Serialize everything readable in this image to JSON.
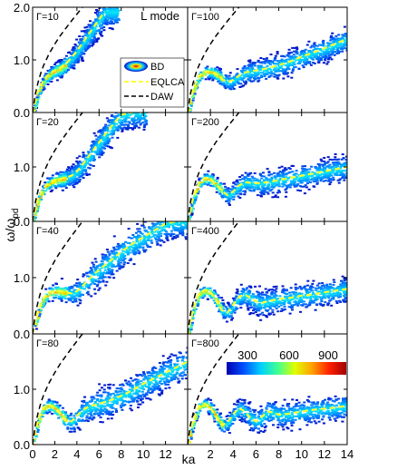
{
  "chart_data": {
    "type": "heatmap",
    "mode_label": "L mode",
    "xlabel": "ka",
    "ylabel": "ω/ω",
    "ylabel_sub": "pd",
    "grid": false,
    "legend": {
      "placement": "top-left panel, right side",
      "entries": [
        {
          "label": "BD",
          "style": "heatmap-icon"
        },
        {
          "label": "EQLCA",
          "style": "dashed",
          "color": "#ffff33"
        },
        {
          "label": "DAW",
          "style": "dashed",
          "color": "#000000"
        }
      ]
    },
    "colorbar": {
      "ticks": [
        "300",
        "600",
        "900"
      ],
      "range": [
        200,
        1050
      ],
      "placement": "bottom-right panel, top",
      "colors": [
        "#0000b0",
        "#0050ff",
        "#00d0ff",
        "#40ff90",
        "#e0ff00",
        "#ffa000",
        "#ff2000",
        "#a00000"
      ]
    },
    "left_xaxis": {
      "range": [
        0,
        14
      ],
      "ticks": [
        "0",
        "2",
        "4",
        "6",
        "8",
        "10",
        "12"
      ]
    },
    "right_xaxis": {
      "range": [
        0,
        14
      ],
      "ticks": [
        "2",
        "4",
        "6",
        "8",
        "10",
        "12",
        "14"
      ]
    },
    "yaxis": {
      "range": [
        0,
        2
      ],
      "tick_values": [
        0,
        1,
        2
      ],
      "top_row_ticks": [
        "0.0",
        "1.0",
        "2.0"
      ],
      "other_row_ticks": [
        "0.0",
        "1.0"
      ]
    },
    "panels": [
      {
        "label": "Γ=10",
        "column": "left",
        "row": 0,
        "eqlca": {
          "x": [
            0,
            0.5,
            1,
            1.5,
            2,
            2.5,
            3,
            3.5,
            4,
            4.5,
            5,
            5.5,
            6,
            6.5
          ],
          "y": [
            0,
            0.4,
            0.62,
            0.74,
            0.8,
            0.85,
            0.93,
            1.04,
            1.17,
            1.32,
            1.47,
            1.62,
            1.77,
            1.92
          ]
        }
      },
      {
        "label": "Γ=100",
        "column": "right",
        "row": 0,
        "eqlca": {
          "x": [
            0,
            0.5,
            1,
            1.5,
            2,
            2.5,
            3,
            3.5,
            4,
            4.5,
            5,
            6,
            7,
            8,
            9,
            10,
            11,
            12,
            13,
            14
          ],
          "y": [
            0,
            0.45,
            0.7,
            0.78,
            0.78,
            0.73,
            0.64,
            0.58,
            0.62,
            0.7,
            0.76,
            0.8,
            0.84,
            0.9,
            0.97,
            1.06,
            1.14,
            1.22,
            1.31,
            1.4
          ]
        }
      },
      {
        "label": "Γ=20",
        "column": "left",
        "row": 1,
        "eqlca": {
          "x": [
            0,
            0.5,
            1,
            1.5,
            2,
            2.5,
            3,
            3.5,
            4,
            4.5,
            5,
            6,
            7,
            8,
            9
          ],
          "y": [
            0,
            0.42,
            0.62,
            0.72,
            0.76,
            0.78,
            0.8,
            0.84,
            0.92,
            1.04,
            1.18,
            1.45,
            1.72,
            1.96,
            2.0
          ]
        }
      },
      {
        "label": "Γ=200",
        "column": "right",
        "row": 1,
        "eqlca": {
          "x": [
            0,
            0.5,
            1,
            1.5,
            2,
            2.5,
            3,
            3.5,
            4,
            4.5,
            5,
            6,
            7,
            8,
            9,
            10,
            11,
            12,
            13,
            14
          ],
          "y": [
            0,
            0.45,
            0.72,
            0.8,
            0.77,
            0.68,
            0.56,
            0.48,
            0.55,
            0.66,
            0.72,
            0.7,
            0.72,
            0.76,
            0.8,
            0.84,
            0.88,
            0.92,
            0.96,
            1.0
          ]
        }
      },
      {
        "label": "Γ=40",
        "column": "left",
        "row": 2,
        "eqlca": {
          "x": [
            0,
            0.5,
            1,
            1.5,
            2,
            2.5,
            3,
            3.5,
            4,
            4.5,
            5,
            6,
            7,
            8,
            9,
            10,
            11,
            12,
            13
          ],
          "y": [
            0,
            0.42,
            0.64,
            0.74,
            0.76,
            0.76,
            0.74,
            0.72,
            0.76,
            0.85,
            0.96,
            1.14,
            1.3,
            1.46,
            1.6,
            1.72,
            1.84,
            1.96,
            2.0
          ]
        }
      },
      {
        "label": "Γ=400",
        "column": "right",
        "row": 2,
        "eqlca": {
          "x": [
            0,
            0.5,
            1,
            1.5,
            2,
            2.5,
            3,
            3.5,
            4,
            4.5,
            5,
            5.5,
            6,
            6.5,
            7,
            8,
            9,
            10,
            11,
            12,
            13,
            14
          ],
          "y": [
            0,
            0.45,
            0.72,
            0.78,
            0.74,
            0.6,
            0.42,
            0.38,
            0.52,
            0.66,
            0.7,
            0.64,
            0.58,
            0.55,
            0.58,
            0.62,
            0.64,
            0.68,
            0.7,
            0.74,
            0.77,
            0.8
          ]
        }
      },
      {
        "label": "Γ=80",
        "column": "left",
        "row": 3,
        "eqlca": {
          "x": [
            0,
            0.5,
            1,
            1.5,
            2,
            2.5,
            3,
            3.5,
            4,
            4.5,
            5,
            6,
            7,
            8,
            9,
            10,
            11,
            12,
            13,
            14
          ],
          "y": [
            0,
            0.45,
            0.68,
            0.72,
            0.66,
            0.55,
            0.44,
            0.42,
            0.52,
            0.62,
            0.68,
            0.74,
            0.8,
            0.88,
            0.98,
            1.1,
            1.2,
            1.3,
            1.4,
            1.5
          ]
        }
      },
      {
        "label": "Γ=800",
        "column": "right",
        "row": 3,
        "eqlca": {
          "x": [
            0,
            0.5,
            1,
            1.5,
            2,
            2.5,
            3,
            3.5,
            4,
            4.5,
            5,
            5.5,
            6,
            6.5,
            7,
            7.5,
            8,
            9,
            10,
            11,
            12,
            13,
            14
          ],
          "y": [
            0,
            0.45,
            0.7,
            0.74,
            0.66,
            0.5,
            0.35,
            0.4,
            0.55,
            0.66,
            0.6,
            0.48,
            0.42,
            0.5,
            0.6,
            0.58,
            0.54,
            0.56,
            0.6,
            0.63,
            0.65,
            0.67,
            0.7
          ]
        }
      }
    ],
    "daw": {
      "x": [
        0,
        0.25,
        0.5,
        0.75,
        1,
        1.5,
        2,
        2.5,
        3,
        3.5,
        4,
        4.5
      ],
      "y": [
        0,
        0.36,
        0.58,
        0.76,
        0.9,
        1.12,
        1.3,
        1.46,
        1.6,
        1.74,
        1.87,
        2.0
      ]
    }
  }
}
